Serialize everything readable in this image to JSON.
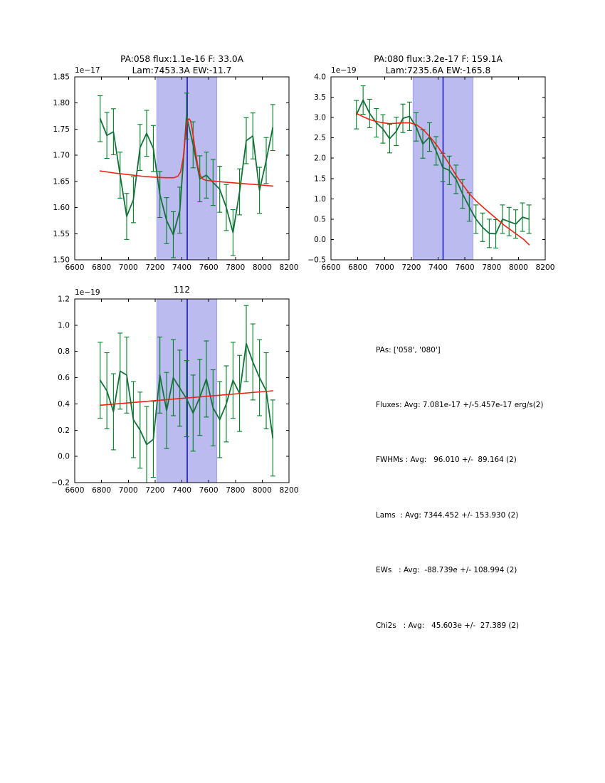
{
  "figure": {
    "background": "#ffffff"
  },
  "colors": {
    "data_line": "#15713b",
    "error_bar": "#007f24",
    "fit_line": "#ee2211",
    "band_fill": "#bbbbf0",
    "band_edge": "#a2a2e8",
    "vline": "#0000b4",
    "axis": "#000000"
  },
  "chart_data": [
    {
      "type": "line",
      "title": "PA:058 flux:1.1e-16 F: 33.0A",
      "title_line2": "Lam:7453.3A EW:-11.7",
      "offset_label": "1e−17",
      "xlim": [
        6600,
        8200
      ],
      "ylim": [
        1.5,
        1.85
      ],
      "xticks": [
        "6600",
        "6800",
        "7000",
        "7200",
        "7400",
        "7600",
        "7800",
        "8000",
        "8200"
      ],
      "yticks": [
        "1.50",
        "1.55",
        "1.60",
        "1.65",
        "1.70",
        "1.75",
        "1.80",
        "1.85"
      ],
      "band": [
        7213,
        7661
      ],
      "vline": 7440,
      "x": [
        6790,
        6840,
        6889,
        6939,
        6988,
        7038,
        7088,
        7137,
        7187,
        7236,
        7286,
        7336,
        7385,
        7435,
        7484,
        7534,
        7583,
        7633,
        7683,
        7732,
        7782,
        7831,
        7881,
        7930,
        7980,
        8030,
        8079
      ],
      "series": [
        {
          "name": "spectrum",
          "values": [
            1.77,
            1.738,
            1.745,
            1.662,
            1.583,
            1.615,
            1.715,
            1.742,
            1.713,
            1.625,
            1.575,
            1.548,
            1.595,
            1.775,
            1.72,
            1.655,
            1.662,
            1.648,
            1.635,
            1.6,
            1.552,
            1.63,
            1.728,
            1.737,
            1.633,
            1.69,
            1.753
          ],
          "yerr": 0.044
        },
        {
          "name": "fit",
          "x": [
            6790,
            6900,
            7000,
            7100,
            7200,
            7280,
            7340,
            7370,
            7390,
            7410,
            7425,
            7440,
            7453,
            7465,
            7480,
            7500,
            7520,
            7540,
            7560,
            7580,
            7620,
            7700,
            7800,
            7900,
            8000,
            8080
          ],
          "values": [
            1.67,
            1.666,
            1.663,
            1.66,
            1.658,
            1.657,
            1.657,
            1.66,
            1.668,
            1.695,
            1.735,
            1.765,
            1.77,
            1.766,
            1.745,
            1.71,
            1.678,
            1.66,
            1.654,
            1.652,
            1.651,
            1.649,
            1.647,
            1.645,
            1.643,
            1.641
          ]
        }
      ]
    },
    {
      "type": "line",
      "title": "PA:080 flux:3.2e-17 F: 159.1A",
      "title_line2": "Lam:7235.6A EW:-165.8",
      "offset_label": "1e−19",
      "xlim": [
        6600,
        8200
      ],
      "ylim": [
        -0.5,
        4.0
      ],
      "xticks": [
        "6600",
        "6800",
        "7000",
        "7200",
        "7400",
        "7600",
        "7800",
        "8000",
        "8200"
      ],
      "yticks": [
        "−0.5",
        "0.0",
        "0.5",
        "1.0",
        "1.5",
        "2.0",
        "2.5",
        "3.0",
        "3.5",
        "4.0"
      ],
      "band": [
        7213,
        7661
      ],
      "vline": 7437,
      "x": [
        6790,
        6840,
        6889,
        6939,
        6988,
        7038,
        7088,
        7137,
        7187,
        7236,
        7286,
        7336,
        7385,
        7435,
        7484,
        7534,
        7583,
        7633,
        7683,
        7732,
        7782,
        7831,
        7881,
        7930,
        7980,
        8030,
        8079
      ],
      "series": [
        {
          "name": "spectrum",
          "values": [
            3.07,
            3.43,
            3.1,
            2.87,
            2.72,
            2.48,
            2.66,
            2.98,
            3.03,
            2.77,
            2.35,
            2.52,
            2.18,
            1.77,
            1.7,
            1.48,
            1.12,
            0.8,
            0.5,
            0.3,
            0.15,
            0.14,
            0.5,
            0.44,
            0.38,
            0.55,
            0.5
          ],
          "yerr": 0.35
        },
        {
          "name": "fit",
          "x": [
            6790,
            6840,
            6890,
            6940,
            6990,
            7040,
            7090,
            7140,
            7190,
            7240,
            7290,
            7340,
            7390,
            7440,
            7490,
            7540,
            7590,
            7640,
            7690,
            7740,
            7790,
            7840,
            7890,
            7940,
            7990,
            8040,
            8080
          ],
          "values": [
            3.1,
            3.02,
            2.95,
            2.9,
            2.87,
            2.85,
            2.86,
            2.87,
            2.87,
            2.82,
            2.7,
            2.52,
            2.32,
            2.08,
            1.82,
            1.55,
            1.32,
            1.1,
            0.93,
            0.78,
            0.64,
            0.5,
            0.36,
            0.24,
            0.12,
            0.0,
            -0.13
          ]
        }
      ]
    },
    {
      "type": "line",
      "title": "112",
      "title_line2": "",
      "offset_label": "1e−19",
      "xlim": [
        6600,
        8200
      ],
      "ylim": [
        -0.2,
        1.2
      ],
      "xticks": [
        "6600",
        "6800",
        "7000",
        "7200",
        "7400",
        "7600",
        "7800",
        "8000",
        "8200"
      ],
      "yticks": [
        "−0.2",
        "0.0",
        "0.2",
        "0.4",
        "0.6",
        "0.8",
        "1.0",
        "1.2"
      ],
      "band": [
        7213,
        7661
      ],
      "vline": 7440,
      "x": [
        6790,
        6840,
        6889,
        6939,
        6988,
        7038,
        7088,
        7137,
        7187,
        7236,
        7286,
        7336,
        7385,
        7435,
        7484,
        7534,
        7583,
        7633,
        7683,
        7732,
        7782,
        7831,
        7881,
        7930,
        7980,
        8030,
        8079
      ],
      "series": [
        {
          "name": "spectrum",
          "values": [
            0.58,
            0.5,
            0.34,
            0.65,
            0.62,
            0.28,
            0.2,
            0.09,
            0.13,
            0.62,
            0.35,
            0.6,
            0.52,
            0.44,
            0.33,
            0.45,
            0.59,
            0.37,
            0.28,
            0.4,
            0.58,
            0.48,
            0.86,
            0.72,
            0.6,
            0.5,
            0.14
          ],
          "yerr": 0.29
        },
        {
          "name": "fit",
          "x": [
            6790,
            8080
          ],
          "values": [
            0.39,
            0.5
          ]
        }
      ]
    }
  ],
  "stats_panel": {
    "lines": [
      "PAs: ['058', '080']",
      "Fluxes: Avg: 7.081e-17 +/-5.457e-17 erg/s(2)",
      "FWHMs : Avg:   96.010 +/-  89.164 (2)",
      "Lams  : Avg: 7344.452 +/- 153.930 (2)",
      "EWs   : Avg:  -88.739e +/- 108.994 (2)",
      "Chi2s   : Avg:   45.603e +/-  27.389 (2)"
    ]
  }
}
